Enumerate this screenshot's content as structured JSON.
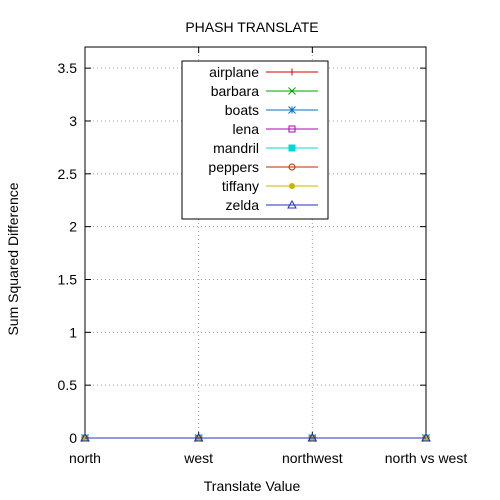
{
  "chart_data": {
    "type": "line",
    "title": "PHASH TRANSLATE",
    "xlabel": "Translate Value",
    "ylabel": "Sum Squared Difference",
    "categories": [
      "north",
      "west",
      "northwest",
      "north vs west"
    ],
    "ylim": [
      0,
      3.7
    ],
    "yticks": [
      0,
      0.5,
      1,
      1.5,
      2,
      2.5,
      3,
      3.5
    ],
    "ytick_labels": [
      "0",
      "0.5",
      "1",
      "1.5",
      "2",
      "2.5",
      "3",
      "3.5"
    ],
    "grid": true,
    "legend_position": "top-center",
    "series": [
      {
        "name": "airplane",
        "color": "#d00000",
        "marker": "plus",
        "values": [
          0,
          0,
          0,
          0
        ]
      },
      {
        "name": "barbara",
        "color": "#00a000",
        "marker": "cross",
        "values": [
          0,
          0,
          0,
          0
        ]
      },
      {
        "name": "boats",
        "color": "#0070c0",
        "marker": "star",
        "values": [
          0,
          0,
          0,
          0
        ]
      },
      {
        "name": "lena",
        "color": "#b000b0",
        "marker": "square-open",
        "values": [
          0,
          0,
          0,
          0
        ]
      },
      {
        "name": "mandril",
        "color": "#00d8d8",
        "marker": "square-filled",
        "values": [
          0,
          0,
          0,
          0
        ]
      },
      {
        "name": "peppers",
        "color": "#b03000",
        "marker": "circle-open",
        "values": [
          0,
          0,
          0,
          0
        ]
      },
      {
        "name": "tiffany",
        "color": "#c8b400",
        "marker": "circle-filled",
        "values": [
          0,
          0,
          0,
          0
        ]
      },
      {
        "name": "zelda",
        "color": "#2030c0",
        "marker": "triangle-open",
        "values": [
          0,
          0,
          0,
          0
        ]
      }
    ]
  }
}
